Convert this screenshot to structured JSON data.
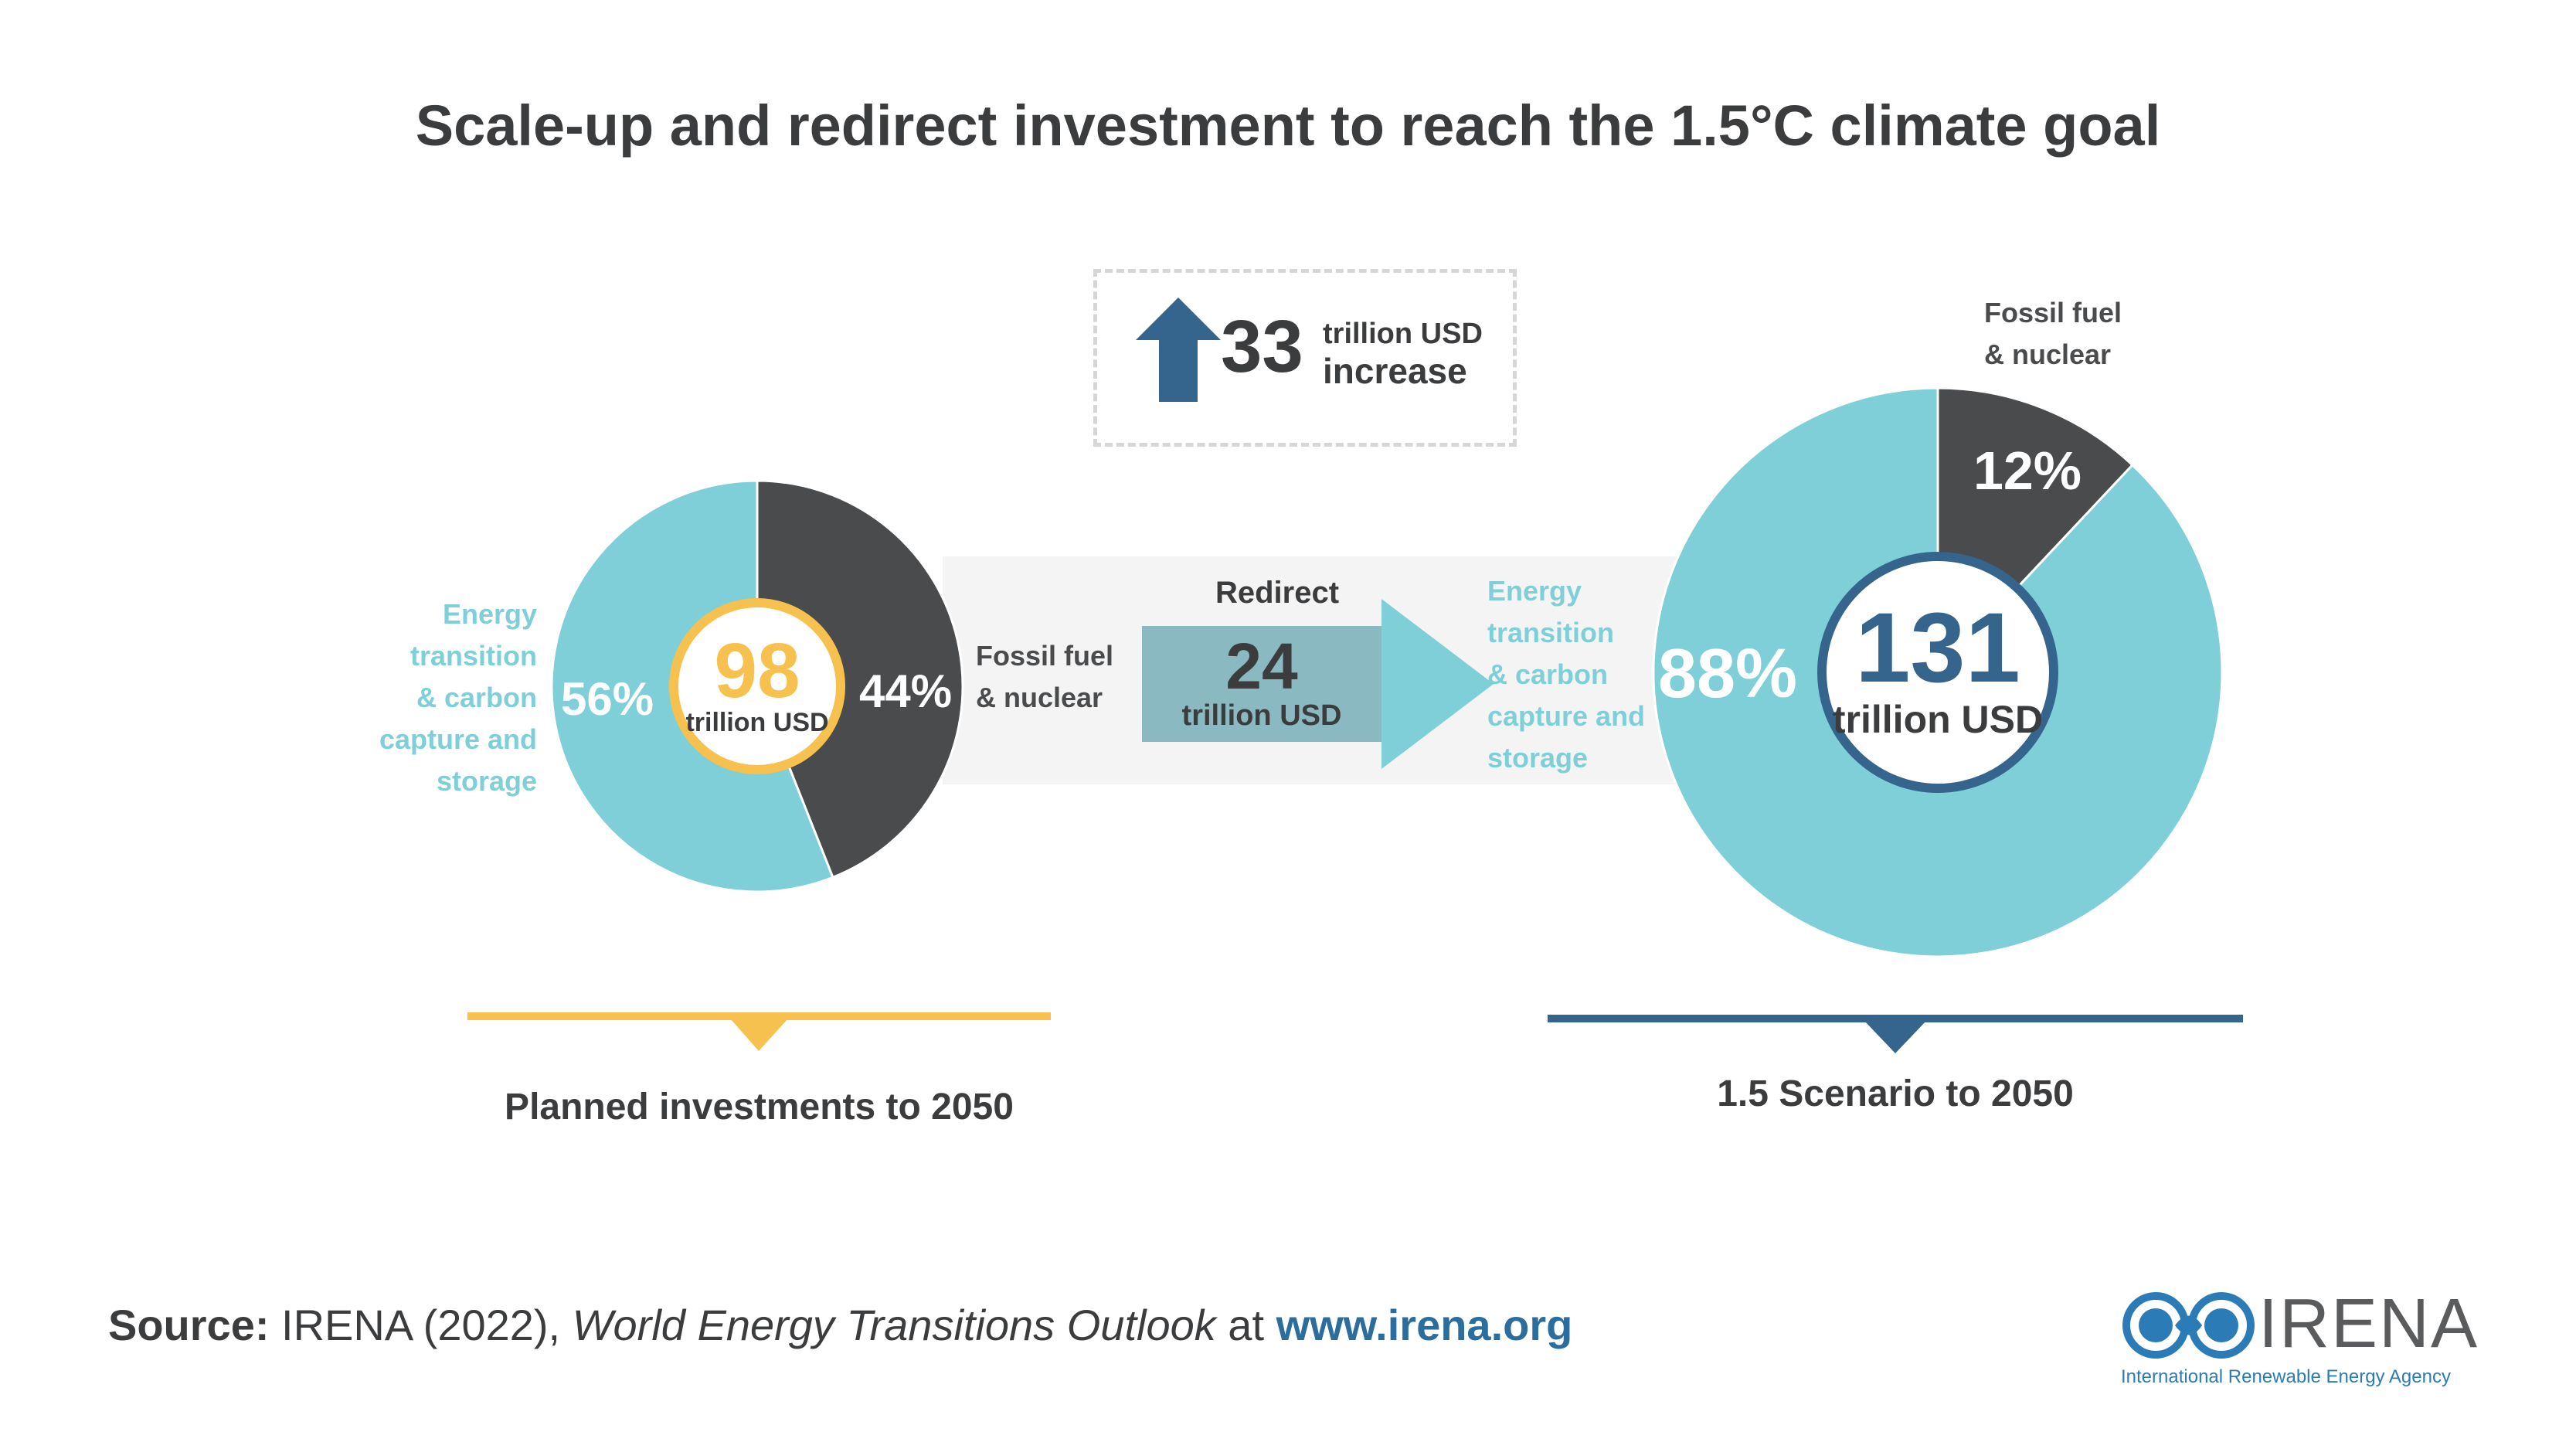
{
  "title": "Scale-up and redirect investment to reach the 1.5°C climate goal",
  "increase": {
    "value": "33",
    "unit_line1": "trillion USD",
    "unit_line2": "increase"
  },
  "redirect": {
    "label": "Redirect",
    "value": "24",
    "unit": "trillion USD"
  },
  "colors": {
    "transition": "#7ecfd8",
    "fossil": "#4a4b4d",
    "planned_accent": "#f7c14f",
    "scenario_accent": "#35648c",
    "text": "#3b3c3e"
  },
  "chart_data": [
    {
      "type": "pie",
      "title": "Planned investments to 2050",
      "total": "98",
      "total_unit": "trillion USD",
      "slices": [
        {
          "label": "Energy transition & carbon capture and storage",
          "value": 56,
          "display": "56%"
        },
        {
          "label": "Fossil fuel & nuclear",
          "value": 44,
          "display": "44%"
        }
      ]
    },
    {
      "type": "pie",
      "title": "1.5 Scenario to 2050",
      "total": "131",
      "total_unit": "trillion USD",
      "slices": [
        {
          "label": "Energy transition & carbon capture and storage",
          "value": 88,
          "display": "88%"
        },
        {
          "label": "Fossil fuel & nuclear",
          "value": 12,
          "display": "12%"
        }
      ]
    }
  ],
  "left_labels": {
    "transition": [
      "Energy",
      "transition",
      "& carbon",
      "capture and",
      "storage"
    ],
    "fossil": [
      "Fossil fuel",
      "& nuclear"
    ]
  },
  "right_labels": {
    "transition": [
      "Energy",
      "transition",
      "& carbon",
      "capture and",
      "storage"
    ],
    "fossil": [
      "Fossil fuel",
      "& nuclear"
    ]
  },
  "source": {
    "prefix": "Source:",
    "text": " IRENA (2022), ",
    "publication": "World Energy Transitions Outlook",
    "at": " at ",
    "url": "www.irena.org"
  },
  "logo": {
    "name": "IRENA",
    "subtitle": "International Renewable Energy Agency"
  }
}
